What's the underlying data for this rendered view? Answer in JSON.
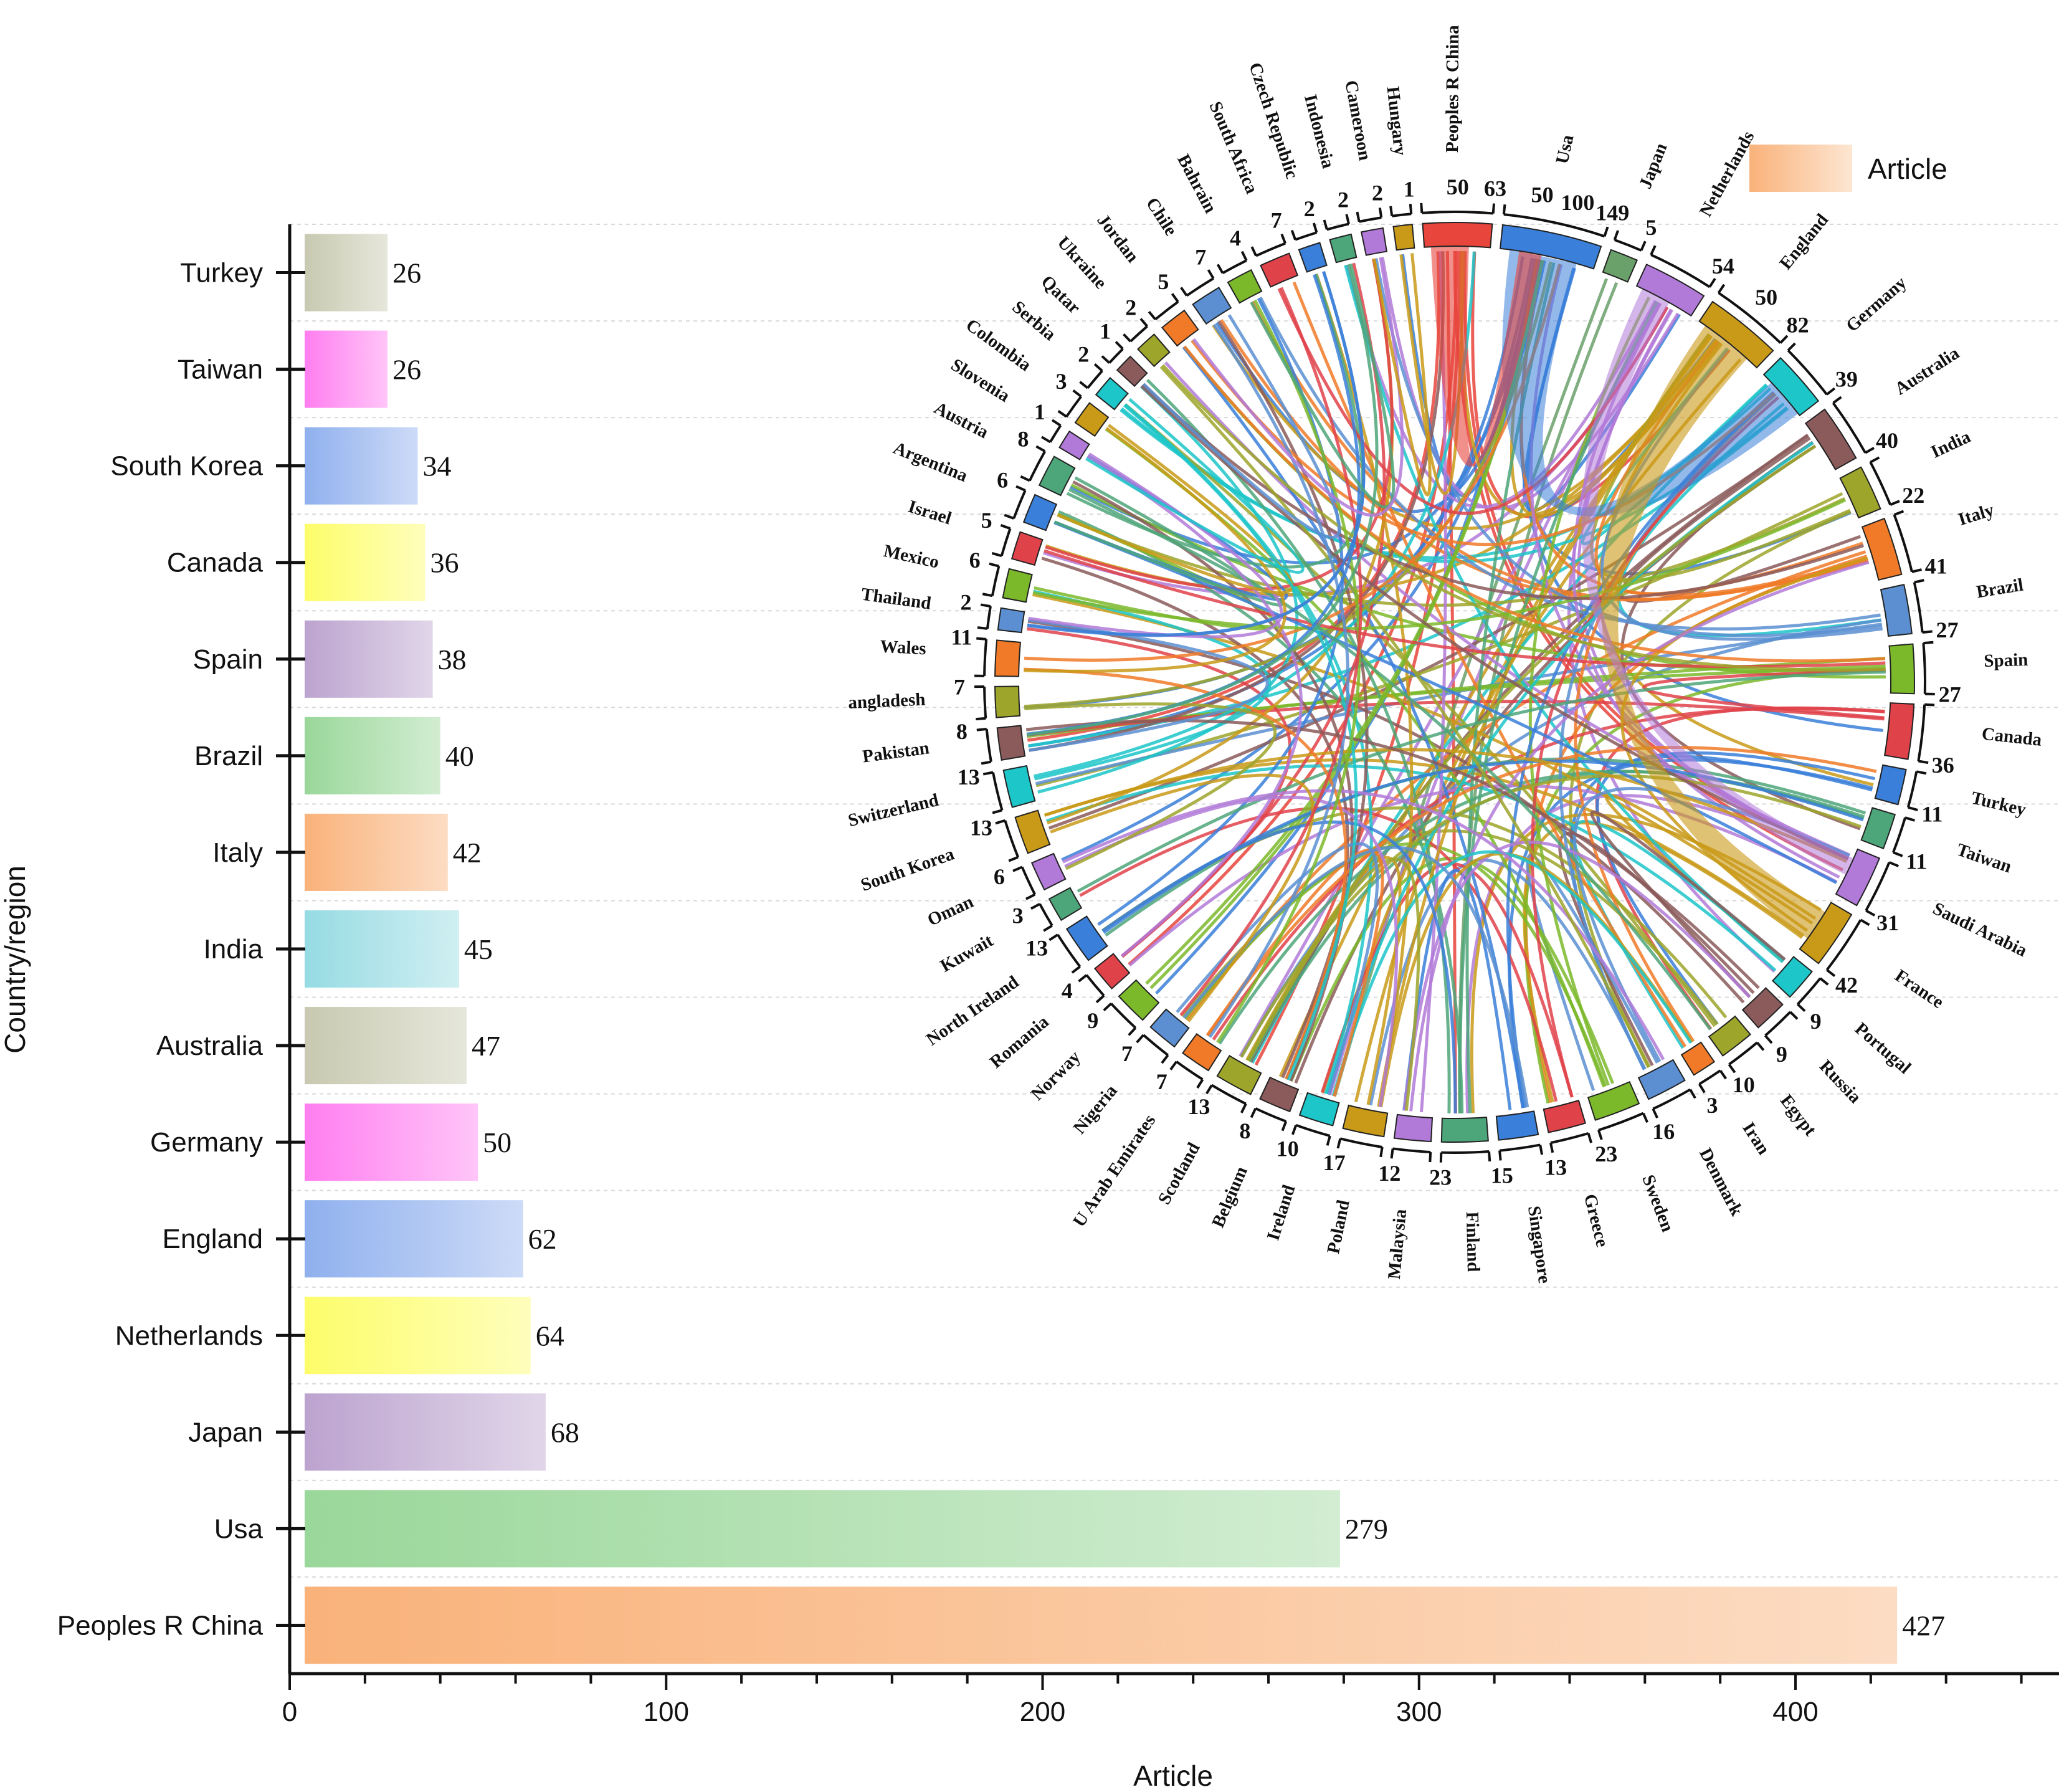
{
  "chart_data": [
    {
      "type": "bar",
      "orientation": "horizontal",
      "categories": [
        "Peoples R China",
        "Usa",
        "Japan",
        "Netherlands",
        "England",
        "Germany",
        "Australia",
        "India",
        "Italy",
        "Brazil",
        "Spain",
        "Canada",
        "South Korea",
        "Taiwan",
        "Turkey"
      ],
      "values": [
        427,
        279,
        68,
        64,
        62,
        50,
        47,
        45,
        42,
        40,
        38,
        36,
        34,
        26,
        26
      ],
      "bar_colors": [
        "#f9b27a",
        "#9ad79a",
        "#bca3cf",
        "#fdfd6a",
        "#8fb0ee",
        "#ff7ef0",
        "#c8c9b0",
        "#96dbe3",
        "#f9b27a",
        "#9ad79a",
        "#bca3cf",
        "#fdfd6a",
        "#8fb0ee",
        "#ff7ef0",
        "#c8c9b0"
      ],
      "xlabel": "Article",
      "ylabel": "Country/region",
      "xlim": [
        0,
        470
      ],
      "xticks": [
        0,
        100,
        200,
        300,
        400
      ],
      "grid": true
    },
    {
      "type": "chord",
      "legend": "Article",
      "legend_color": "#f9b27a",
      "nodes": [
        {
          "name": "Peoples R China",
          "value": 63,
          "color": "#e8453c",
          "ticks": [
            "50",
            "63"
          ]
        },
        {
          "name": "Usa",
          "value": 149,
          "color": "#3a7fd9",
          "ticks": [
            "50",
            "100",
            "149"
          ]
        },
        {
          "name": "Japan",
          "value": 5,
          "color": "#6aa06a"
        },
        {
          "name": "Netherlands",
          "value": 54,
          "color": "#b27ad8"
        },
        {
          "name": "England",
          "value": 82,
          "color": "#c99a17",
          "ticks": [
            "50",
            "82"
          ]
        },
        {
          "name": "Germany",
          "value": 39,
          "color": "#1cc6c9"
        },
        {
          "name": "Australia",
          "value": 40,
          "color": "#8b5a5a"
        },
        {
          "name": "India",
          "value": 22,
          "color": "#9da52a"
        },
        {
          "name": "Italy",
          "value": 41,
          "color": "#f07a28"
        },
        {
          "name": "Brazil",
          "value": 27,
          "color": "#5b8fd1"
        },
        {
          "name": "Spain",
          "value": 27,
          "color": "#7bb82a"
        },
        {
          "name": "Canada",
          "value": 36,
          "color": "#e0424a"
        },
        {
          "name": "Turkey",
          "value": 11,
          "color": "#3a7fd9"
        },
        {
          "name": "Taiwan",
          "value": 11,
          "color": "#4da67a"
        },
        {
          "name": "Saudi Arabia",
          "value": 31,
          "color": "#b27ad8"
        },
        {
          "name": "France",
          "value": 42,
          "color": "#c99a17"
        },
        {
          "name": "Portugal",
          "value": 9,
          "color": "#1cc6c9"
        },
        {
          "name": "Russia",
          "value": 9,
          "color": "#8b5a5a"
        },
        {
          "name": "Egypt",
          "value": 10,
          "color": "#9da52a"
        },
        {
          "name": "Iran",
          "value": 3,
          "color": "#f07a28"
        },
        {
          "name": "Denmark",
          "value": 16,
          "color": "#5b8fd1"
        },
        {
          "name": "Sweden",
          "value": 23,
          "color": "#7bb82a"
        },
        {
          "name": "Greece",
          "value": 13,
          "color": "#e0424a"
        },
        {
          "name": "Singapore",
          "value": 15,
          "color": "#3a7fd9"
        },
        {
          "name": "Finland",
          "value": 23,
          "color": "#4da67a"
        },
        {
          "name": "Malaysia",
          "value": 12,
          "color": "#b27ad8"
        },
        {
          "name": "Poland",
          "value": 17,
          "color": "#c99a17"
        },
        {
          "name": "Ireland",
          "value": 10,
          "color": "#1cc6c9"
        },
        {
          "name": "Belgium",
          "value": 8,
          "color": "#8b5a5a"
        },
        {
          "name": "Scotland",
          "value": 13,
          "color": "#9da52a"
        },
        {
          "name": "U Arab Emirates",
          "value": 7,
          "color": "#f07a28"
        },
        {
          "name": "Nigeria",
          "value": 7,
          "color": "#5b8fd1"
        },
        {
          "name": "Norway",
          "value": 9,
          "color": "#7bb82a"
        },
        {
          "name": "Romania",
          "value": 4,
          "color": "#e0424a"
        },
        {
          "name": "North Ireland",
          "value": 13,
          "color": "#3a7fd9"
        },
        {
          "name": "Kuwait",
          "value": 3,
          "color": "#4da67a"
        },
        {
          "name": "Oman",
          "value": 6,
          "color": "#b27ad8"
        },
        {
          "name": "South Korea",
          "value": 13,
          "color": "#c99a17"
        },
        {
          "name": "Switzerland",
          "value": 13,
          "color": "#1cc6c9"
        },
        {
          "name": "Pakistan",
          "value": 8,
          "color": "#8b5a5a"
        },
        {
          "name": "angladesh",
          "value": 7,
          "color": "#9da52a"
        },
        {
          "name": "Wales",
          "value": 11,
          "color": "#f07a28"
        },
        {
          "name": "Thailand",
          "value": 2,
          "color": "#5b8fd1"
        },
        {
          "name": "Mexico",
          "value": 6,
          "color": "#7bb82a"
        },
        {
          "name": "Israel",
          "value": 5,
          "color": "#e0424a"
        },
        {
          "name": "Argentina",
          "value": 6,
          "color": "#3a7fd9"
        },
        {
          "name": "Austria",
          "value": 8,
          "color": "#4da67a"
        },
        {
          "name": "Slovenia",
          "value": 1,
          "color": "#b27ad8"
        },
        {
          "name": "Colombia",
          "value": 3,
          "color": "#c99a17"
        },
        {
          "name": "Serbia",
          "value": 2,
          "color": "#1cc6c9"
        },
        {
          "name": "Qatar",
          "value": 1,
          "color": "#8b5a5a"
        },
        {
          "name": "Ukraine",
          "value": 2,
          "color": "#9da52a"
        },
        {
          "name": "Jordan",
          "value": 5,
          "color": "#f07a28"
        },
        {
          "name": "Chile",
          "value": 7,
          "color": "#5b8fd1"
        },
        {
          "name": "Bahrain",
          "value": 4,
          "color": "#7bb82a"
        },
        {
          "name": "South Africa",
          "value": 7,
          "color": "#e0424a"
        },
        {
          "name": "Czech Republic",
          "value": 2,
          "color": "#3a7fd9"
        },
        {
          "name": "Indonesia",
          "value": 2,
          "color": "#4da67a"
        },
        {
          "name": "Cameroon",
          "value": 2,
          "color": "#b27ad8"
        },
        {
          "name": "Hungary",
          "value": 1,
          "color": "#c99a17"
        }
      ]
    }
  ]
}
